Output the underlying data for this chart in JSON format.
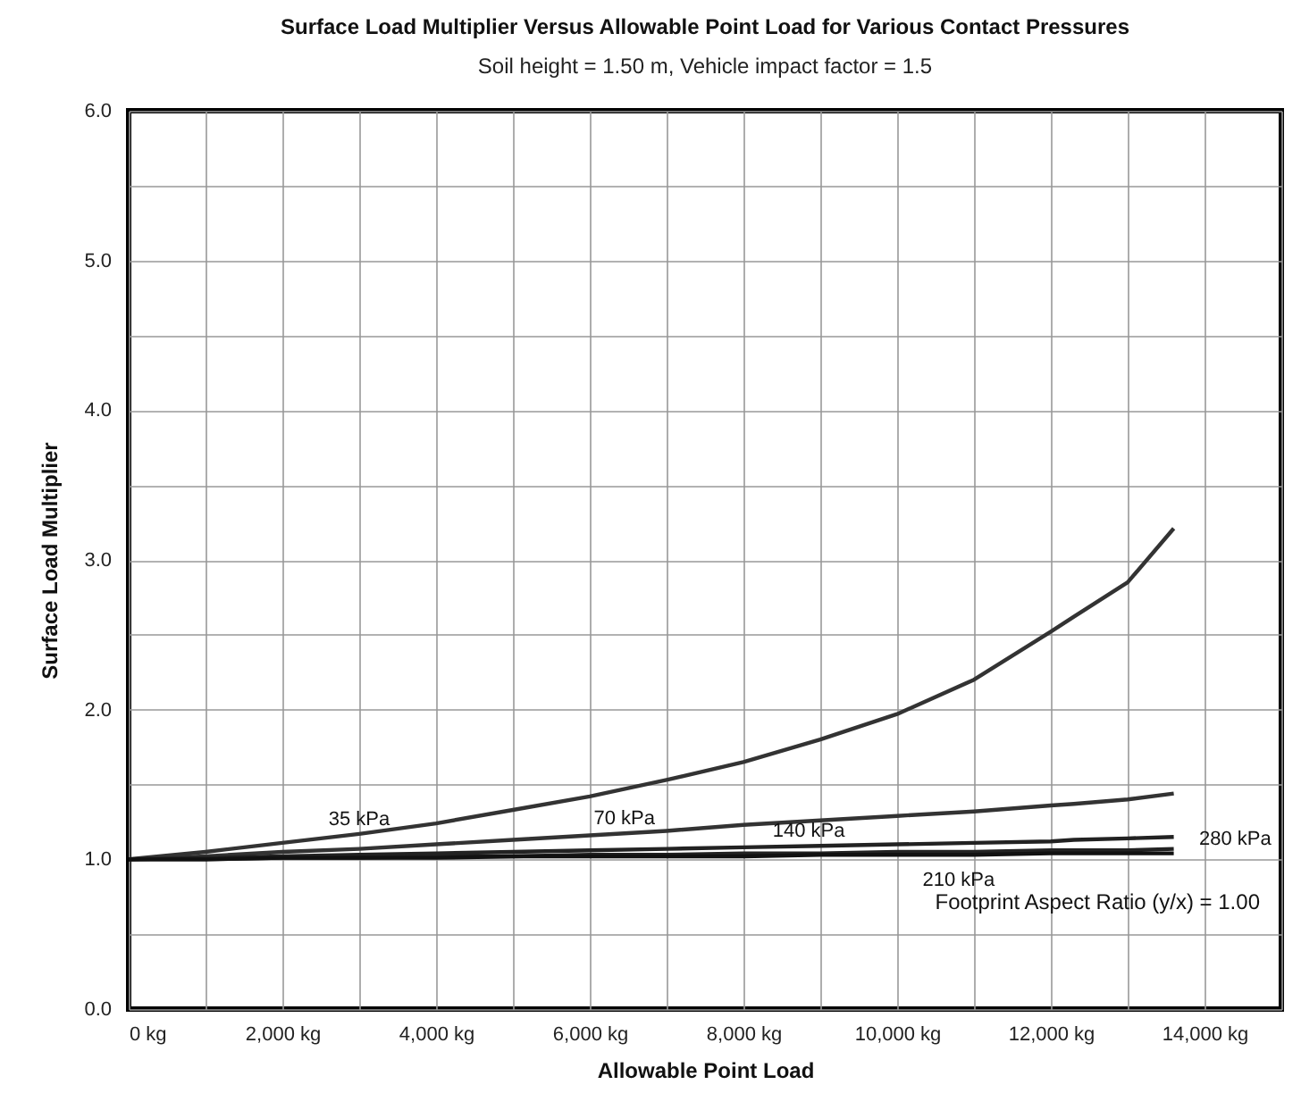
{
  "chart_data": {
    "type": "line",
    "title": "Surface Load Multiplier Versus Allowable Point Load for Various Contact Pressures",
    "subtitle": "Soil height = 1.50 m,  Vehicle impact factor = 1.5",
    "xlabel": "Allowable Point Load",
    "ylabel": "Surface Load Multiplier",
    "xlim": [
      0,
      15000
    ],
    "xticks": [
      {
        "value": 0,
        "label": "0 kg"
      },
      {
        "value": 1000,
        "label": null
      },
      {
        "value": 2000,
        "label": "2,000 kg"
      },
      {
        "value": 3000,
        "label": null
      },
      {
        "value": 4000,
        "label": "4,000 kg"
      },
      {
        "value": 5000,
        "label": null
      },
      {
        "value": 6000,
        "label": "6,000 kg"
      },
      {
        "value": 7000,
        "label": null
      },
      {
        "value": 8000,
        "label": "8,000 kg"
      },
      {
        "value": 9000,
        "label": null
      },
      {
        "value": 10000,
        "label": "10,000 kg"
      },
      {
        "value": 11000,
        "label": null
      },
      {
        "value": 12000,
        "label": "12,000 kg"
      },
      {
        "value": 13000,
        "label": null
      },
      {
        "value": 14000,
        "label": "14,000 kg"
      },
      {
        "value": 15000,
        "label": null
      }
    ],
    "ylim": [
      0,
      6
    ],
    "yticks": [
      {
        "value": 0,
        "label": "0.0"
      },
      {
        "value": 0.5,
        "label": null
      },
      {
        "value": 1,
        "label": "1.0"
      },
      {
        "value": 1.5,
        "label": null
      },
      {
        "value": 2,
        "label": "2.0"
      },
      {
        "value": 2.5,
        "label": null
      },
      {
        "value": 3,
        "label": "3.0"
      },
      {
        "value": 3.5,
        "label": null
      },
      {
        "value": 4,
        "label": "4.0"
      },
      {
        "value": 4.5,
        "label": null
      },
      {
        "value": 5,
        "label": "5.0"
      },
      {
        "value": 5.5,
        "label": null
      },
      {
        "value": 6,
        "label": "6.0"
      }
    ],
    "grid": true,
    "x": [
      0,
      1000,
      2000,
      3000,
      4000,
      5000,
      6000,
      7000,
      8000,
      9000,
      10000,
      11000,
      12000,
      12300,
      13000,
      13600
    ],
    "series": [
      {
        "name": "35 kPa",
        "color": "#333333",
        "values": [
          1.0,
          1.05,
          1.11,
          1.17,
          1.24,
          1.33,
          1.42,
          1.53,
          1.65,
          1.8,
          1.97,
          2.2,
          2.52,
          2.62,
          2.85,
          3.21
        ]
      },
      {
        "name": "70 kPa",
        "color": "#333333",
        "values": [
          1.0,
          1.02,
          1.05,
          1.07,
          1.1,
          1.13,
          1.16,
          1.19,
          1.23,
          1.26,
          1.29,
          1.32,
          1.36,
          1.37,
          1.4,
          1.44
        ]
      },
      {
        "name": "140 kPa",
        "color": "#222222",
        "values": [
          1.0,
          1.01,
          1.02,
          1.03,
          1.04,
          1.05,
          1.06,
          1.07,
          1.08,
          1.09,
          1.1,
          1.11,
          1.12,
          1.13,
          1.14,
          1.15
        ]
      },
      {
        "name": "210 kPa",
        "color": "#222222",
        "values": [
          1.0,
          1.0,
          1.01,
          1.01,
          1.02,
          1.02,
          1.03,
          1.03,
          1.04,
          1.04,
          1.05,
          1.05,
          1.06,
          1.06,
          1.06,
          1.07
        ]
      },
      {
        "name": "280 kPa",
        "color": "#111111",
        "values": [
          1.0,
          1.0,
          1.01,
          1.01,
          1.01,
          1.02,
          1.02,
          1.02,
          1.02,
          1.03,
          1.03,
          1.03,
          1.04,
          1.04,
          1.04,
          1.04
        ]
      }
    ],
    "annotations": [
      "Footprint Aspect Ratio (y/x) = 1.00"
    ],
    "line_style": "solid",
    "marker": "none"
  }
}
